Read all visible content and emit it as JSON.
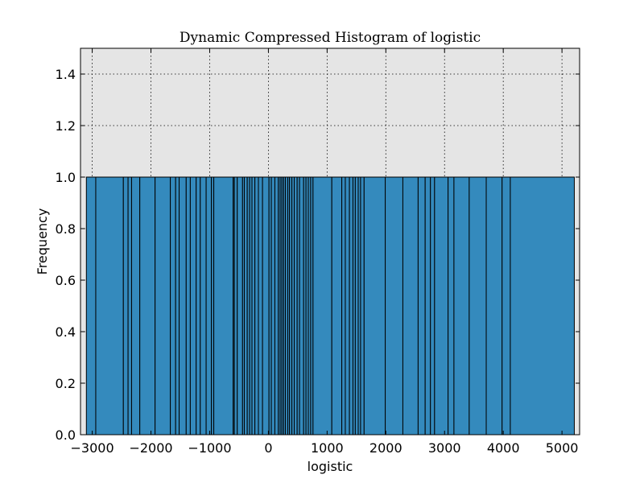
{
  "chart_data": {
    "type": "bar",
    "title": "Dynamic Compressed Histogram of logistic",
    "xlabel": "logistic",
    "ylabel": "Frequency",
    "xlim": [
      -3200,
      5300
    ],
    "ylim": [
      0,
      1.5
    ],
    "x_ticks": [
      -3000,
      -2000,
      -1000,
      0,
      1000,
      2000,
      3000,
      4000,
      5000
    ],
    "x_tick_labels": [
      "−3000",
      "−2000",
      "−1000",
      "0",
      "1000",
      "2000",
      "3000",
      "4000",
      "5000"
    ],
    "y_ticks": [
      0.0,
      0.2,
      0.4,
      0.6,
      0.8,
      1.0,
      1.2,
      1.4
    ],
    "y_tick_labels": [
      "0.0",
      "0.2",
      "0.4",
      "0.6",
      "0.8",
      "1.0",
      "1.2",
      "1.4"
    ],
    "grid": true,
    "bin_edges": [
      -3100,
      -2940,
      -2470,
      -2390,
      -2330,
      -2190,
      -1930,
      -1670,
      -1580,
      -1520,
      -1400,
      -1330,
      -1230,
      -1160,
      -1060,
      -970,
      -930,
      -600,
      -580,
      -530,
      -440,
      -410,
      -360,
      -320,
      -280,
      -230,
      -170,
      -100,
      10,
      50,
      110,
      170,
      200,
      230,
      260,
      290,
      330,
      360,
      400,
      440,
      490,
      530,
      600,
      640,
      680,
      720,
      760,
      1080,
      1250,
      1310,
      1380,
      1440,
      1480,
      1530,
      1570,
      1630,
      1990,
      2290,
      2550,
      2670,
      2760,
      2830,
      3060,
      3160,
      3420,
      3710,
      3980,
      4120,
      5210
    ],
    "values": [
      1,
      1,
      1,
      1,
      1,
      1,
      1,
      1,
      1,
      1,
      1,
      1,
      1,
      1,
      1,
      1,
      1,
      1,
      1,
      1,
      1,
      1,
      1,
      1,
      1,
      1,
      1,
      1,
      1,
      1,
      1,
      1,
      1,
      1,
      1,
      1,
      1,
      1,
      1,
      1,
      1,
      1,
      1,
      1,
      1,
      1,
      1,
      1,
      1,
      1,
      1,
      1,
      1,
      1,
      1,
      1,
      1,
      1,
      1,
      1,
      1,
      1,
      1,
      1,
      1,
      1,
      1,
      1
    ],
    "colors": {
      "bar_fill": "#348abd",
      "bar_edge": "#000000",
      "plot_bg": "#e5e5e5",
      "grid": "#000000"
    }
  }
}
